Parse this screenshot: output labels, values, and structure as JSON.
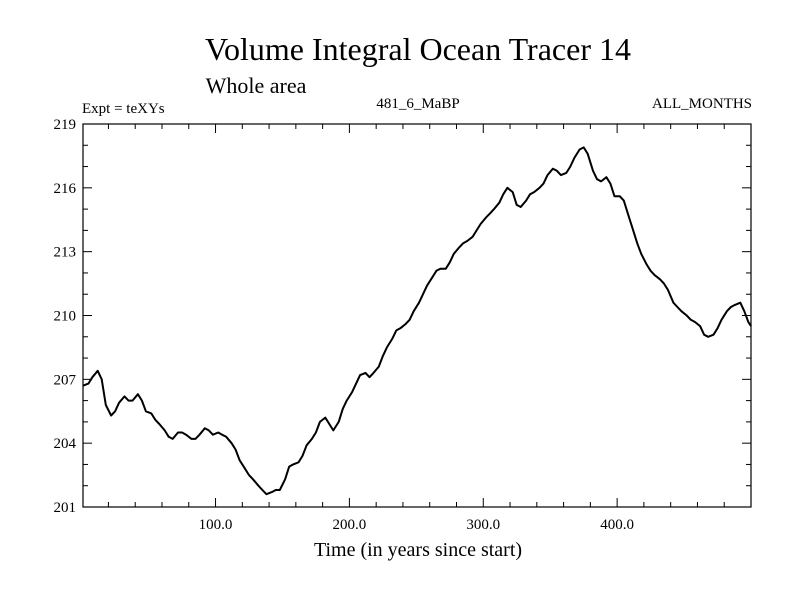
{
  "chart_data": {
    "type": "line",
    "title": "Volume Integral Ocean Tracer 14",
    "subtitle": "Whole area",
    "experiment_label": "Expt = teXYs",
    "run_label": "481_6_MaBP",
    "period_label": "ALL_MONTHS",
    "xlabel": "Time (in years since start)",
    "ylabel": "",
    "xlim": [
      1,
      500
    ],
    "ylim": [
      201,
      219
    ],
    "xticks": [
      100,
      200,
      300,
      400
    ],
    "xtick_labels": [
      "100.0",
      "200.0",
      "300.0",
      "400.0"
    ],
    "yticks": [
      201,
      204,
      207,
      210,
      213,
      216,
      219
    ],
    "ytick_labels": [
      "201",
      "204",
      "207",
      "210",
      "213",
      "216",
      "219"
    ],
    "grid": false,
    "line_color": "#000000",
    "series": [
      {
        "x": [
          1,
          5,
          8,
          12,
          15,
          18,
          22,
          25,
          28,
          32,
          35,
          38,
          42,
          45,
          48,
          52,
          55,
          58,
          62,
          65,
          68,
          72,
          75,
          78,
          82,
          85,
          88,
          92,
          95,
          98,
          102,
          105,
          108,
          112,
          115,
          118,
          122,
          125,
          128,
          132,
          135,
          138,
          142,
          145,
          148,
          152,
          155,
          158,
          162,
          165,
          168,
          172,
          175,
          178,
          182,
          185,
          188,
          192,
          195,
          198,
          202,
          205,
          208,
          212,
          215,
          218,
          222,
          225,
          228,
          232,
          235,
          238,
          242,
          245,
          248,
          252,
          255,
          258,
          262,
          265,
          268,
          272,
          275,
          278,
          282,
          285,
          288,
          292,
          295,
          298,
          302,
          305,
          308,
          312,
          315,
          318,
          322,
          325,
          328,
          332,
          335,
          338,
          342,
          345,
          348,
          352,
          355,
          358,
          362,
          365,
          368,
          372,
          375,
          378,
          382,
          385,
          388,
          392,
          395,
          398,
          402,
          405,
          408,
          412,
          415,
          418,
          422,
          425,
          428,
          432,
          435,
          438,
          442,
          445,
          448,
          452,
          455,
          458,
          462,
          465,
          468,
          472,
          475,
          478,
          482,
          485,
          488,
          492,
          495,
          498,
          500
        ],
        "y": [
          206.7,
          206.8,
          207.1,
          207.4,
          207.0,
          205.8,
          205.3,
          205.5,
          205.9,
          206.2,
          206.0,
          206.0,
          206.3,
          206.0,
          205.5,
          205.4,
          205.1,
          204.9,
          204.6,
          204.3,
          204.2,
          204.5,
          204.5,
          204.4,
          204.2,
          204.2,
          204.4,
          204.7,
          204.6,
          204.4,
          204.5,
          204.4,
          204.3,
          204.0,
          203.7,
          203.2,
          202.8,
          202.5,
          202.3,
          202.0,
          201.8,
          201.6,
          201.7,
          201.8,
          201.8,
          202.3,
          202.9,
          203.0,
          203.1,
          203.4,
          203.9,
          204.2,
          204.5,
          205.0,
          205.2,
          204.9,
          204.6,
          205.0,
          205.6,
          206.0,
          206.4,
          206.8,
          207.2,
          207.3,
          207.1,
          207.3,
          207.6,
          208.1,
          208.5,
          208.9,
          209.3,
          209.4,
          209.6,
          209.8,
          210.2,
          210.6,
          211.0,
          211.4,
          211.8,
          212.1,
          212.2,
          212.2,
          212.5,
          212.9,
          213.2,
          213.4,
          213.5,
          213.7,
          214.0,
          214.3,
          214.6,
          214.8,
          215.0,
          215.3,
          215.7,
          216.0,
          215.8,
          215.2,
          215.1,
          215.4,
          215.7,
          215.8,
          216.0,
          216.2,
          216.6,
          216.9,
          216.8,
          216.6,
          216.7,
          217.0,
          217.4,
          217.8,
          217.9,
          217.6,
          216.8,
          216.4,
          216.3,
          216.5,
          216.2,
          215.6,
          215.6,
          215.4,
          214.8,
          214.0,
          213.4,
          212.9,
          212.4,
          212.1,
          211.9,
          211.7,
          211.5,
          211.2,
          210.6,
          210.4,
          210.2,
          210.0,
          209.8,
          209.7,
          209.5,
          209.1,
          209.0,
          209.1,
          209.4,
          209.8,
          210.2,
          210.4,
          210.5,
          210.6,
          210.2,
          209.7,
          209.5
        ]
      }
    ]
  }
}
